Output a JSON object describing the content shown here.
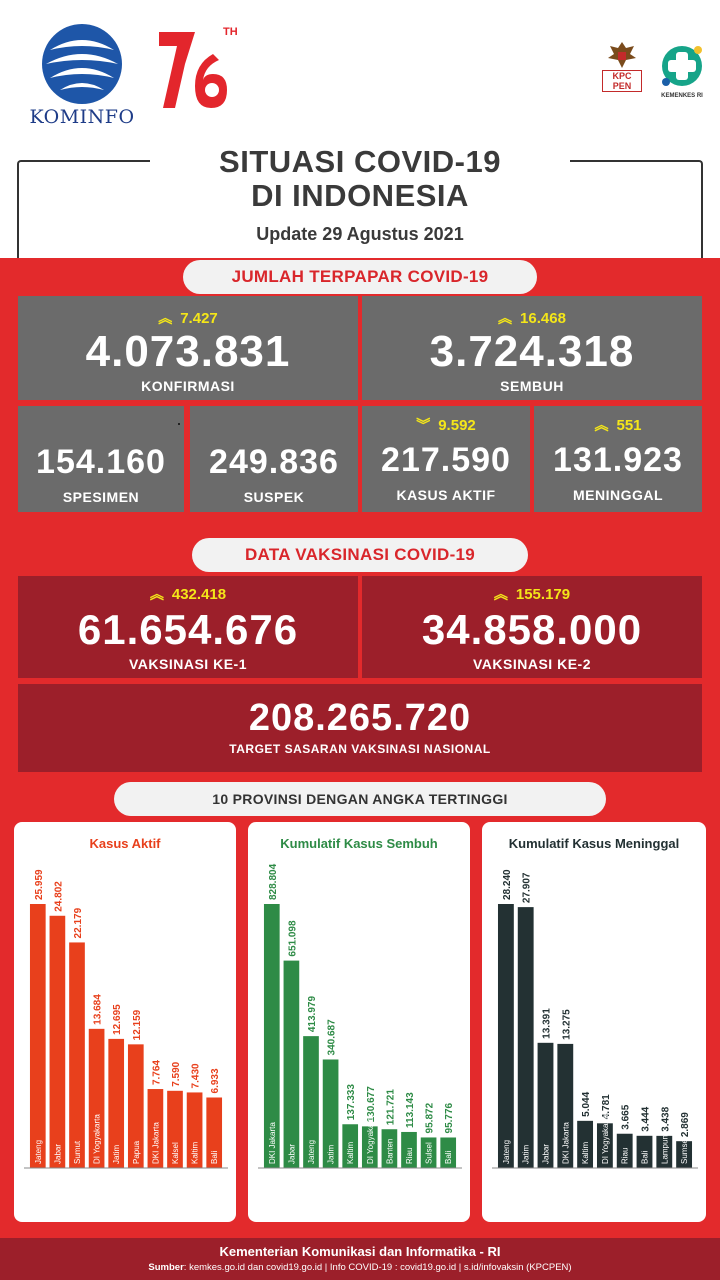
{
  "header": {
    "kominfo_label": "KOMINFO",
    "anniversary_suffix": "TH",
    "kpcpen_label": "KPC PEN",
    "kemenkes_label": "KEMENKES RI",
    "title_line1": "SITUASI COVID-19",
    "title_line2": "DI INDONESIA",
    "update": "Update 29 Agustus 2021"
  },
  "section_terpapar": {
    "heading": "JUMLAH TERPAPAR COVID-19",
    "konfirmasi": {
      "delta": "7.427",
      "value": "4.073.831",
      "label": "KONFIRMASI",
      "direction": "up"
    },
    "sembuh": {
      "delta": "16.468",
      "value": "3.724.318",
      "label": "SEMBUH",
      "direction": "up"
    },
    "spesimen": {
      "value": "154.160",
      "label": "SPESIMEN"
    },
    "suspek": {
      "value": "249.836",
      "label": "SUSPEK"
    },
    "kasus_aktif": {
      "delta": "9.592",
      "value": "217.590",
      "label": "KASUS AKTIF",
      "direction": "down"
    },
    "meninggal": {
      "delta": "551",
      "value": "131.923",
      "label": "MENINGGAL",
      "direction": "up"
    }
  },
  "section_vaksinasi": {
    "heading": "DATA VAKSINASI COVID-19",
    "dose1": {
      "delta": "432.418",
      "value": "61.654.676",
      "label": "VAKSINASI KE-1",
      "direction": "up"
    },
    "dose2": {
      "delta": "155.179",
      "value": "34.858.000",
      "label": "VAKSINASI KE-2",
      "direction": "up"
    },
    "target": {
      "value": "208.265.720",
      "label": "TARGET SASARAN VAKSINASI NASIONAL"
    }
  },
  "section_provinsi": {
    "heading": "10 PROVINSI DENGAN ANGKA TERTINGGI"
  },
  "colors": {
    "red": "#e32a2c",
    "maroon": "#9c1f2a",
    "gray_card": "#6b6b6b",
    "yellow": "#f4e619",
    "bar_orange": "#e8401c",
    "bar_green": "#2e8b46",
    "bar_dark": "#233133"
  },
  "chart_data": [
    {
      "type": "bar",
      "title": "Kasus Aktif",
      "categories": [
        "Jateng",
        "Jabar",
        "Sumut",
        "DI Yogyakarta",
        "Jatim",
        "Papua",
        "DKI Jakarta",
        "Kalsel",
        "Kaltim",
        "Bali"
      ],
      "values": [
        25959,
        24802,
        22179,
        13684,
        12695,
        12159,
        7764,
        7590,
        7430,
        6933
      ],
      "labels": [
        "25.959",
        "24.802",
        "22.179",
        "13.684",
        "12.695",
        "12.159",
        "7.764",
        "7.590",
        "7.430",
        "6.933"
      ],
      "color": "#e8401c"
    },
    {
      "type": "bar",
      "title": "Kumulatif Kasus Sembuh",
      "categories": [
        "DKI Jakarta",
        "Jabar",
        "Jateng",
        "Jatim",
        "Kaltim",
        "DI Yogyakarta",
        "Banten",
        "Riau",
        "Sulsel",
        "Bali"
      ],
      "values": [
        828804,
        651098,
        413979,
        340687,
        137333,
        130677,
        121721,
        113143,
        95872,
        95776
      ],
      "labels": [
        "828.804",
        "651.098",
        "413.979",
        "340.687",
        "137.333",
        "130.677",
        "121.721",
        "113.143",
        "95.872",
        "95.776"
      ],
      "color": "#2e8b46"
    },
    {
      "type": "bar",
      "title": "Kumulatif Kasus Meninggal",
      "categories": [
        "Jateng",
        "Jatim",
        "Jabar",
        "DKI Jakarta",
        "Kaltim",
        "DI Yogyakarta",
        "Riau",
        "Bali",
        "Lampung",
        "Sumsel"
      ],
      "values": [
        28240,
        27907,
        13391,
        13275,
        5044,
        4781,
        3665,
        3444,
        3438,
        2869
      ],
      "labels": [
        "28.240",
        "27.907",
        "13.391",
        "13.275",
        "5.044",
        "4.781",
        "3.665",
        "3.444",
        "3.438",
        "2.869"
      ],
      "color": "#233133"
    }
  ],
  "footer": {
    "line1": "Kementerian Komunikasi dan Informatika - RI",
    "source_label": "Sumber",
    "line2": ": kemkes.go.id dan covid19.go.id | Info COVID-19 : covid19.go.id | s.id/infovaksin (KPCPEN)"
  }
}
